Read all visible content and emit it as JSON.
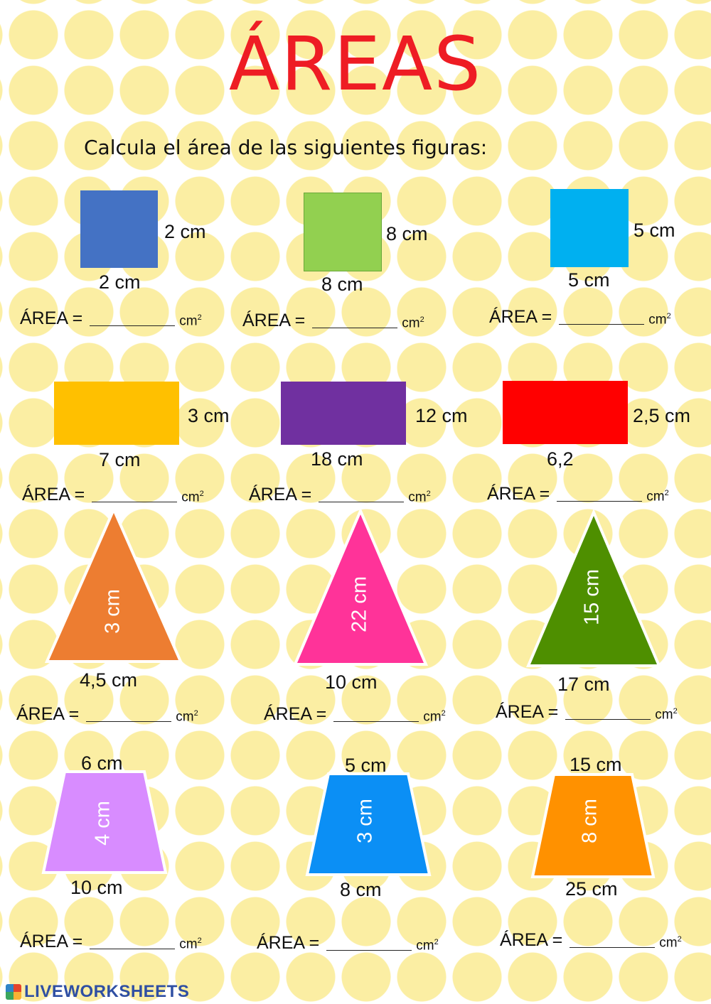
{
  "title": "ÁREAS",
  "instruction": "Calcula el área de las siguientes figuras:",
  "area_prefix": "ÁREA =",
  "unit_base": "cm",
  "unit_exp": "2",
  "footer": "LIVEWORKSHEETS",
  "colors": {
    "title": "#ee1c24",
    "dots": "#fbeea3",
    "square1": "#4472c4",
    "square2": "#92d050",
    "square3": "#00b0f0",
    "rect1": "#ffc000",
    "rect2": "#7030a0",
    "rect3": "#ff0000",
    "tri1": "#ed7d31",
    "tri2": "#ff3399",
    "tri3": "#4e8f00",
    "trap1": "#d88cff",
    "trap2": "#0b8ff5",
    "trap3": "#ff9100"
  },
  "figures": {
    "square1": {
      "side_right": "2 cm",
      "side_bottom": "2 cm"
    },
    "square2": {
      "side_right": "8 cm",
      "side_bottom": "8 cm"
    },
    "square3": {
      "side_right": "5 cm",
      "side_bottom": "5 cm"
    },
    "rect1": {
      "height": "3 cm",
      "base": "7 cm"
    },
    "rect2": {
      "height": "12 cm",
      "base": "18 cm"
    },
    "rect3": {
      "height": "2,5 cm",
      "base": "6,2"
    },
    "tri1": {
      "height": "3 cm",
      "base": "4,5 cm"
    },
    "tri2": {
      "height": "22 cm",
      "base": "10 cm"
    },
    "tri3": {
      "height": "15 cm",
      "base": "17 cm"
    },
    "trap1": {
      "top": "6 cm",
      "height": "4 cm",
      "bottom": "10 cm"
    },
    "trap2": {
      "top": "5 cm",
      "height": "3 cm",
      "bottom": "8 cm"
    },
    "trap3": {
      "top": "15 cm",
      "height": "8 cm",
      "bottom": "25 cm"
    }
  }
}
